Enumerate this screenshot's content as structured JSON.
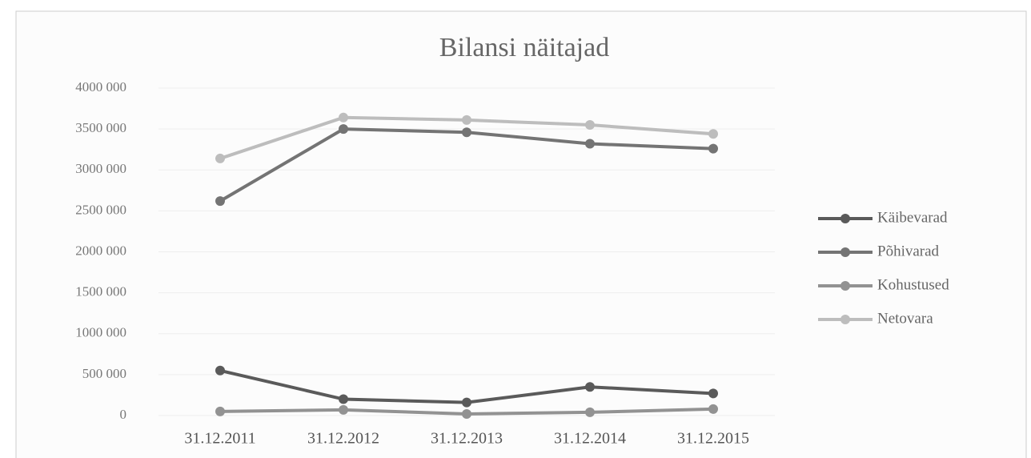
{
  "chart_data": {
    "type": "line",
    "title": "Bilansi näitajad",
    "categories": [
      "31.12.2011",
      "31.12.2012",
      "31.12.2013",
      "31.12.2014",
      "31.12.2015"
    ],
    "series": [
      {
        "name": "Käibevarad",
        "color": "#5a5a5a",
        "values": [
          550000,
          200000,
          160000,
          350000,
          270000
        ]
      },
      {
        "name": "Põhivarad",
        "color": "#747474",
        "values": [
          2620000,
          3500000,
          3460000,
          3320000,
          3260000
        ]
      },
      {
        "name": "Kohustused",
        "color": "#929292",
        "values": [
          50000,
          70000,
          20000,
          40000,
          80000
        ]
      },
      {
        "name": "Netovara",
        "color": "#bdbdbd",
        "values": [
          3140000,
          3640000,
          3610000,
          3550000,
          3440000
        ]
      }
    ],
    "ylim": [
      0,
      4000000
    ],
    "yticks": [
      0,
      {
        "value": 500000,
        "label": "500 000"
      },
      {
        "value": 1000000,
        "label": "1000 000"
      },
      {
        "value": 1500000,
        "label": "1500 000"
      },
      {
        "value": 2000000,
        "label": "2000 000"
      },
      {
        "value": 2500000,
        "label": "2500 000"
      },
      {
        "value": 3000000,
        "label": "3000 000"
      },
      {
        "value": 3500000,
        "label": "3500 000"
      },
      {
        "value": 4000000,
        "label": "4000 000"
      }
    ],
    "grid": true,
    "legend": "right"
  }
}
